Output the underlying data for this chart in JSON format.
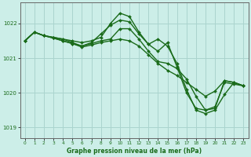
{
  "title": "Graphe pression niveau de la mer (hPa)",
  "bg_color": "#cceee8",
  "grid_color": "#aad4ce",
  "line_color": "#1a6b1a",
  "marker": "D",
  "marker_size": 2.0,
  "line_width": 1.0,
  "xlim": [
    -0.5,
    23.5
  ],
  "ylim": [
    1018.7,
    1022.6
  ],
  "yticks": [
    1019,
    1020,
    1021,
    1022
  ],
  "xticks": [
    0,
    1,
    2,
    3,
    4,
    5,
    6,
    7,
    8,
    9,
    10,
    11,
    12,
    13,
    14,
    15,
    16,
    17,
    18,
    19,
    20,
    21,
    22,
    23
  ],
  "series": [
    [
      1021.5,
      1021.75,
      1021.65,
      1021.6,
      1021.55,
      1021.5,
      1021.45,
      1021.5,
      1021.6,
      1022.0,
      1022.3,
      1022.2,
      1021.75,
      1021.4,
      1021.55,
      1021.35,
      1020.85,
      1020.1,
      1019.5,
      1019.4,
      1019.5,
      1019.95,
      1020.3,
      1020.2
    ],
    [
      1021.5,
      1021.75,
      1021.65,
      1021.6,
      1021.55,
      1021.45,
      1021.35,
      1021.45,
      1021.7,
      1021.95,
      1022.1,
      1022.05,
      1021.7,
      1021.4,
      1021.2,
      1021.45,
      1020.75,
      1020.0,
      1019.55,
      1019.5,
      1019.55,
      1020.35,
      1020.3,
      1020.2
    ],
    [
      1021.5,
      1021.75,
      1021.65,
      1021.58,
      1021.5,
      1021.42,
      1021.35,
      1021.42,
      1021.5,
      1021.55,
      1021.85,
      1021.85,
      1021.55,
      1021.2,
      1020.9,
      1020.85,
      1020.7,
      1020.4,
      1019.9,
      1019.5,
      1019.6,
      1020.3,
      1020.25,
      1020.2
    ],
    [
      1021.5,
      1021.75,
      1021.65,
      1021.58,
      1021.5,
      1021.42,
      1021.32,
      1021.38,
      1021.45,
      1021.5,
      1021.55,
      1021.5,
      1021.35,
      1021.1,
      1020.85,
      1020.65,
      1020.5,
      1020.3,
      1020.1,
      1019.9,
      1020.05,
      1020.35,
      1020.3,
      1020.2
    ]
  ]
}
